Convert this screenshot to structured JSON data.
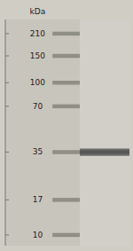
{
  "chart_data": {
    "type": "gel",
    "y_label": "kDa",
    "log": "y",
    "ylim": [
      8.5,
      260
    ],
    "yticks": [
      210,
      150,
      100,
      70,
      35,
      17,
      10
    ],
    "grid": false,
    "series": [
      {
        "type": "ladder",
        "color": "#888880",
        "values": [
          210,
          150,
          100,
          70,
          35,
          17,
          10
        ]
      },
      {
        "type": "band",
        "color": "#4a4a4a",
        "values": [
          35
        ]
      }
    ]
  }
}
